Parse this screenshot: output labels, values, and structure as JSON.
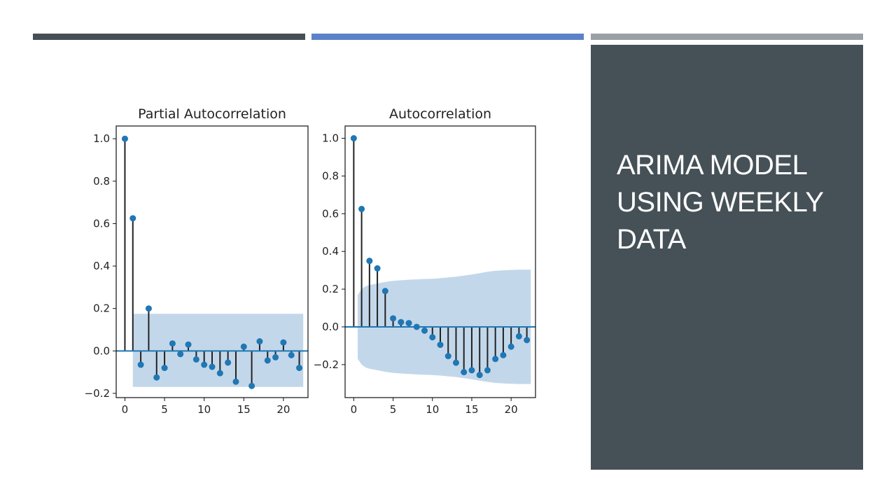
{
  "slide": {
    "title": "ARIMA MODEL USING WEEKLY DATA",
    "colors": {
      "bar_left": "#464f55",
      "bar_middle": "#5b82c8",
      "bar_right": "#9aa0a6",
      "panel": "#465157",
      "panel_text": "#ffffff"
    }
  },
  "chart_data": [
    {
      "type": "stem",
      "title": "Partial Autocorrelation",
      "xlabel": "",
      "ylabel": "",
      "x": [
        0,
        1,
        2,
        3,
        4,
        5,
        6,
        7,
        8,
        9,
        10,
        11,
        12,
        13,
        14,
        15,
        16,
        17,
        18,
        19,
        20,
        21,
        22
      ],
      "values": [
        1.0,
        0.625,
        -0.065,
        0.2,
        -0.125,
        -0.08,
        0.035,
        -0.015,
        0.03,
        -0.04,
        -0.065,
        -0.075,
        -0.105,
        -0.055,
        -0.145,
        0.02,
        -0.165,
        0.045,
        -0.045,
        -0.03,
        0.04,
        -0.02,
        -0.08
      ],
      "confidence_band": {
        "x": [
          1,
          22.5
        ],
        "upper": [
          0.175,
          0.175
        ],
        "lower": [
          -0.17,
          -0.17
        ]
      },
      "xlim": [
        -1.1,
        23.1
      ],
      "ylim": [
        -0.22,
        1.06
      ],
      "xticks": [
        0,
        5,
        10,
        15,
        20
      ],
      "xtick_labels": [
        "0",
        "5",
        "10",
        "15",
        "20"
      ],
      "yticks": [
        1.0,
        0.8,
        0.6,
        0.4,
        0.2,
        0.0,
        -0.2
      ],
      "ytick_labels": [
        "1.0",
        "0.8",
        "0.6",
        "0.4",
        "0.2",
        "0.0",
        "−0.2"
      ],
      "marker_color": "#1f77b4",
      "stem_color": "#222222",
      "band_color": "#c3d7ea",
      "grid": false
    },
    {
      "type": "stem",
      "title": "Autocorrelation",
      "xlabel": "",
      "ylabel": "",
      "x": [
        0,
        1,
        2,
        3,
        4,
        5,
        6,
        7,
        8,
        9,
        10,
        11,
        12,
        13,
        14,
        15,
        16,
        17,
        18,
        19,
        20,
        21,
        22
      ],
      "values": [
        1.0,
        0.625,
        0.35,
        0.31,
        0.19,
        0.045,
        0.025,
        0.02,
        0.0,
        -0.02,
        -0.055,
        -0.095,
        -0.155,
        -0.19,
        -0.24,
        -0.23,
        -0.255,
        -0.23,
        -0.17,
        -0.15,
        -0.105,
        -0.05,
        -0.07
      ],
      "confidence_band": {
        "x": [
          0.5,
          1,
          1.5,
          2,
          3,
          4,
          5,
          6,
          7,
          8,
          9,
          10,
          11,
          12,
          13,
          14,
          15,
          16,
          17,
          18,
          19,
          20,
          21,
          22.5
        ],
        "upper": [
          0.17,
          0.2,
          0.215,
          0.222,
          0.23,
          0.238,
          0.244,
          0.247,
          0.25,
          0.252,
          0.254,
          0.255,
          0.258,
          0.262,
          0.266,
          0.272,
          0.278,
          0.285,
          0.292,
          0.297,
          0.3,
          0.302,
          0.303,
          0.303
        ],
        "lower": [
          -0.17,
          -0.2,
          -0.215,
          -0.222,
          -0.23,
          -0.238,
          -0.244,
          -0.247,
          -0.25,
          -0.252,
          -0.254,
          -0.255,
          -0.258,
          -0.262,
          -0.266,
          -0.272,
          -0.278,
          -0.285,
          -0.292,
          -0.297,
          -0.3,
          -0.302,
          -0.303,
          -0.303
        ]
      },
      "xlim": [
        -1.1,
        23.1
      ],
      "ylim": [
        -0.375,
        1.065
      ],
      "xticks": [
        0,
        5,
        10,
        15,
        20
      ],
      "xtick_labels": [
        "0",
        "5",
        "10",
        "15",
        "20"
      ],
      "yticks": [
        1.0,
        0.8,
        0.6,
        0.4,
        0.2,
        0.0,
        -0.2
      ],
      "ytick_labels": [
        "1.0",
        "0.8",
        "0.6",
        "0.4",
        "0.2",
        "0.0",
        "−0.2"
      ],
      "marker_color": "#1f77b4",
      "stem_color": "#222222",
      "band_color": "#c3d7ea",
      "grid": false
    }
  ]
}
